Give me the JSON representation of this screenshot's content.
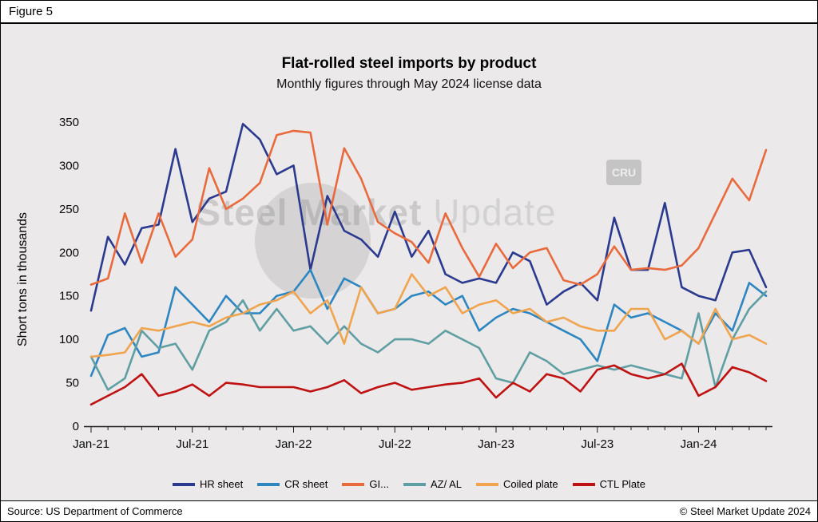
{
  "figure_label": "Figure 5",
  "watermark": {
    "text_primary": "Steel Market",
    "text_secondary": "Update",
    "logo": "CRU"
  },
  "footer": {
    "source": "Source: US Department of Commerce",
    "copyright": "© Steel Market Update 2024"
  },
  "chart_data": {
    "type": "line",
    "title": "Flat-rolled steel imports by product",
    "subtitle": "Monthly figures through May 2024 license data",
    "ylabel": "Short tons in thousands",
    "ylim": [
      0,
      350
    ],
    "ytick_step": 50,
    "grid": false,
    "legend_position": "bottom",
    "xtick_every": 6,
    "x": [
      "Jan-21",
      "Feb-21",
      "Mar-21",
      "Apr-21",
      "May-21",
      "Jun-21",
      "Jul-21",
      "Aug-21",
      "Sep-21",
      "Oct-21",
      "Nov-21",
      "Dec-21",
      "Jan-22",
      "Feb-22",
      "Mar-22",
      "Apr-22",
      "May-22",
      "Jun-22",
      "Jul-22",
      "Aug-22",
      "Sep-22",
      "Oct-22",
      "Nov-22",
      "Dec-22",
      "Jan-23",
      "Feb-23",
      "Mar-23",
      "Apr-23",
      "May-23",
      "Jun-23",
      "Jul-23",
      "Aug-23",
      "Sep-23",
      "Oct-23",
      "Nov-23",
      "Dec-23",
      "Jan-24",
      "Feb-24",
      "Mar-24",
      "Apr-24",
      "May-24"
    ],
    "series": [
      {
        "name": "HR sheet",
        "color": "#2b3a8f",
        "values": [
          133,
          218,
          186,
          228,
          232,
          319,
          235,
          262,
          270,
          348,
          330,
          290,
          300,
          180,
          265,
          225,
          215,
          195,
          247,
          195,
          225,
          175,
          165,
          170,
          165,
          200,
          190,
          140,
          155,
          165,
          145,
          240,
          180,
          180,
          257,
          160,
          150,
          145,
          200,
          203,
          160
        ]
      },
      {
        "name": "CR sheet",
        "color": "#2e86c1",
        "values": [
          58,
          105,
          113,
          80,
          85,
          160,
          140,
          120,
          150,
          130,
          130,
          150,
          155,
          180,
          135,
          170,
          160,
          130,
          135,
          150,
          155,
          140,
          150,
          110,
          125,
          135,
          130,
          120,
          110,
          100,
          75,
          140,
          125,
          130,
          120,
          110,
          95,
          130,
          110,
          165,
          150
        ]
      },
      {
        "name": "GI...",
        "color": "#e86a3d",
        "values": [
          163,
          170,
          245,
          188,
          245,
          195,
          215,
          297,
          250,
          262,
          280,
          335,
          340,
          338,
          232,
          320,
          285,
          235,
          222,
          212,
          188,
          245,
          205,
          172,
          210,
          182,
          200,
          205,
          168,
          163,
          175,
          207,
          180,
          182,
          180,
          185,
          205,
          245,
          285,
          260,
          318
        ]
      },
      {
        "name": "AZ/ AL",
        "color": "#5f9fa3",
        "values": [
          80,
          42,
          55,
          110,
          90,
          95,
          65,
          110,
          120,
          145,
          110,
          135,
          110,
          115,
          95,
          115,
          95,
          85,
          100,
          100,
          95,
          110,
          100,
          90,
          55,
          50,
          85,
          75,
          60,
          65,
          70,
          65,
          70,
          65,
          60,
          55,
          130,
          45,
          100,
          135,
          155
        ]
      },
      {
        "name": "Coiled plate",
        "color": "#f0a44e",
        "values": [
          80,
          82,
          85,
          113,
          110,
          115,
          120,
          115,
          125,
          130,
          140,
          145,
          155,
          130,
          145,
          95,
          160,
          130,
          135,
          175,
          150,
          160,
          130,
          140,
          145,
          130,
          135,
          120,
          125,
          115,
          110,
          110,
          135,
          135,
          100,
          110,
          95,
          135,
          100,
          105,
          95
        ]
      },
      {
        "name": "CTL Plate",
        "color": "#bf1212",
        "values": [
          25,
          35,
          45,
          60,
          35,
          40,
          48,
          35,
          50,
          48,
          45,
          45,
          45,
          40,
          45,
          53,
          38,
          45,
          50,
          42,
          45,
          48,
          50,
          55,
          33,
          50,
          40,
          60,
          55,
          40,
          65,
          70,
          60,
          55,
          60,
          72,
          35,
          45,
          68,
          62,
          52
        ]
      }
    ]
  }
}
